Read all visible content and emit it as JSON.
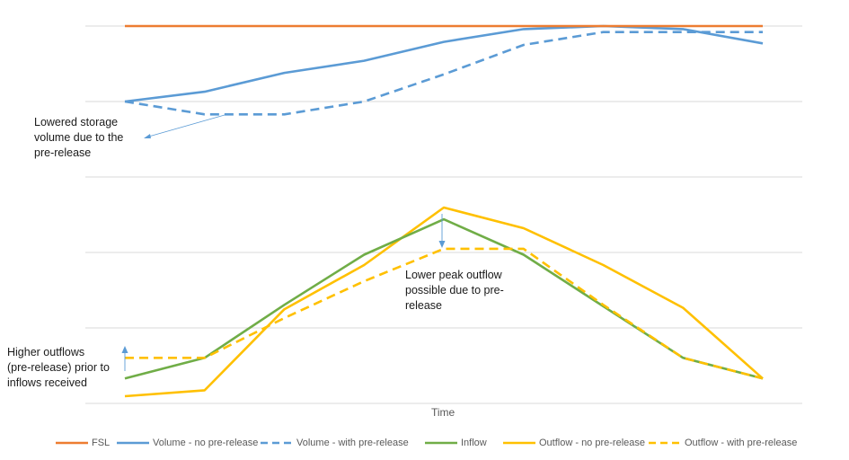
{
  "chart_data": {
    "type": "line",
    "xlabel": "Time",
    "x": [
      1,
      2,
      3,
      4,
      5,
      6,
      7,
      8,
      9
    ],
    "grid": true,
    "panels": [
      {
        "id": "storage",
        "series": [
          {
            "name": "FSL",
            "color": "#ED7D31",
            "dash": false,
            "values": [
              100,
              100,
              100,
              100,
              100,
              100,
              100,
              100,
              100
            ]
          },
          {
            "name": "Volume - no pre-release",
            "color": "#5B9BD5",
            "dash": false,
            "values": [
              0,
              13,
              38,
              54,
              79,
              96,
              100,
              96,
              77
            ]
          },
          {
            "name": "Volume - with pre-release",
            "color": "#5B9BD5",
            "dash": true,
            "values": [
              0,
              -17,
              -17,
              0,
              36,
              75,
              92,
              92,
              92
            ]
          }
        ]
      },
      {
        "id": "flow",
        "series": [
          {
            "name": "Inflow",
            "color": "#70AD47",
            "dash": false,
            "values": [
              12,
              26,
              62,
              96,
              120,
              96,
              61,
              26,
              12
            ]
          },
          {
            "name": "Outflow - no pre-release",
            "color": "#FFC000",
            "dash": false,
            "values": [
              0,
              4,
              59,
              89,
              128,
              114,
              89,
              60,
              12
            ]
          },
          {
            "name": "Outflow - with pre-release",
            "color": "#FFC000",
            "dash": true,
            "values": [
              26,
              26,
              53,
              78,
              100,
              100,
              62,
              26,
              12
            ]
          }
        ]
      }
    ],
    "annotations": [
      {
        "id": "lowered-storage",
        "lines": [
          "Lowered storage",
          "volume due to the",
          "pre-release"
        ]
      },
      {
        "id": "lower-peak",
        "lines": [
          "Lower peak outflow",
          "possible due to pre-",
          "release"
        ]
      },
      {
        "id": "higher-outflows",
        "lines": [
          "Higher outflows",
          "(pre-release) prior to",
          "inflows received"
        ]
      }
    ],
    "legend": {
      "position": "bottom",
      "items": [
        "FSL",
        "Volume - no pre-release",
        "Volume - with pre-release",
        "Inflow",
        "Outflow - no pre-release",
        "Outflow - with pre-release"
      ]
    }
  }
}
